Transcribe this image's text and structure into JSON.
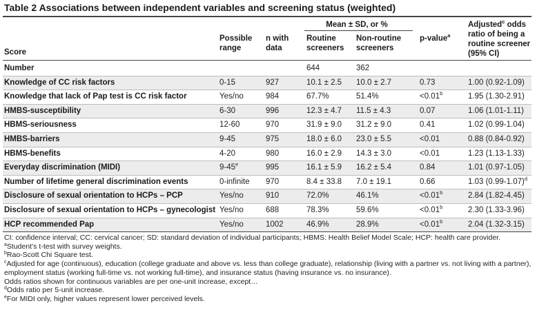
{
  "title": "Table 2 Associations between independent variables and screening status (weighted)",
  "header": {
    "score": "Score",
    "range_l1": "Possible",
    "range_l2": "range",
    "n_l1": "n with",
    "n_l2": "data",
    "mean_group": "Mean ± SD, or %",
    "routine_l1": "Routine",
    "routine_l2": "screeners",
    "nonroutine_l1": "Non-routine",
    "nonroutine_l2": "screeners",
    "pvalue": "p-value",
    "pvalue_sup": "a",
    "odds_l1a": "Adjusted",
    "odds_l1_sup": "c",
    "odds_l1b": " odds",
    "odds_l2": "ratio of being a",
    "odds_l3": "routine screener",
    "odds_l4": "(95% CI)"
  },
  "rows": [
    {
      "label": "Number",
      "range": "",
      "n": "",
      "routine": "644",
      "nonroutine": "362",
      "p": "",
      "p_sup": "",
      "odds": "",
      "odds_sup": "",
      "range_sup": ""
    },
    {
      "label": "Knowledge of CC risk factors",
      "range": "0-15",
      "range_sup": "",
      "n": "927",
      "routine": "10.1 ± 2.5",
      "nonroutine": "10.0 ± 2.7",
      "p": "0.73",
      "p_sup": "",
      "odds": "1.00 (0.92-1.09)",
      "odds_sup": ""
    },
    {
      "label": "Knowledge that lack of Pap test is CC risk factor",
      "range": "Yes/no",
      "range_sup": "",
      "n": "984",
      "routine": "67.7%",
      "nonroutine": "51.4%",
      "p": "<0.01",
      "p_sup": "b",
      "odds": "1.95 (1.30-2.91)",
      "odds_sup": ""
    },
    {
      "label": "HMBS-susceptibility",
      "range": "6-30",
      "range_sup": "",
      "n": "996",
      "routine": "12.3 ± 4.7",
      "nonroutine": "11.5 ± 4.3",
      "p": "0.07",
      "p_sup": "",
      "odds": "1.06 (1.01-1.11)",
      "odds_sup": ""
    },
    {
      "label": "HBMS-seriousness",
      "range": "12-60",
      "range_sup": "",
      "n": "970",
      "routine": "31.9 ± 9.0",
      "nonroutine": "31.2 ± 9.0",
      "p": "0.41",
      "p_sup": "",
      "odds": "1.02 (0.99-1.04)",
      "odds_sup": ""
    },
    {
      "label": "HMBS-barriers",
      "range": "9-45",
      "range_sup": "",
      "n": "975",
      "routine": "18.0 ± 6.0",
      "nonroutine": "23.0 ± 5.5",
      "p": "<0.01",
      "p_sup": "",
      "odds": "0.88 (0.84-0.92)",
      "odds_sup": ""
    },
    {
      "label": "HBMS-benefits",
      "range": "4-20",
      "range_sup": "",
      "n": "980",
      "routine": "16.0 ± 2.9",
      "nonroutine": "14.3 ± 3.0",
      "p": "<0.01",
      "p_sup": "",
      "odds": "1.23 (1.13-1.33)",
      "odds_sup": ""
    },
    {
      "label": "Everyday discrimination (MIDI)",
      "range": "9-45",
      "range_sup": "e",
      "n": "995",
      "routine": "16.1 ± 5.9",
      "nonroutine": "16.2 ± 5.4",
      "p": "0.84",
      "p_sup": "",
      "odds": "1.01 (0.97-1.05)",
      "odds_sup": ""
    },
    {
      "label": "Number of lifetime general discrimination events",
      "range": "0-infinite",
      "range_sup": "",
      "n": "970",
      "routine": "8.4 ± 33.8",
      "nonroutine": "7.0 ± 19.1",
      "p": "0.66",
      "p_sup": "",
      "odds": "1.03 (0.99-1.07)",
      "odds_sup": "d"
    },
    {
      "label": "Disclosure of sexual orientation to HCPs – PCP",
      "range": "Yes/no",
      "range_sup": "",
      "n": "910",
      "routine": "72.0%",
      "nonroutine": "46.1%",
      "p": "<0.01",
      "p_sup": "b",
      "odds": "2.84 (1.82-4.45)",
      "odds_sup": ""
    },
    {
      "label": "Disclosure of sexual orientation to HCPs – gynecologist",
      "range": "Yes/no",
      "range_sup": "",
      "n": "688",
      "routine": "78.3%",
      "nonroutine": "59.6%",
      "p": "<0.01",
      "p_sup": "b",
      "odds": "2.30 (1.33-3.96)",
      "odds_sup": ""
    },
    {
      "label": "HCP recommended Pap",
      "range": "Yes/no",
      "range_sup": "",
      "n": "1002",
      "routine": "46.9%",
      "nonroutine": "28.9%",
      "p": "<0.01",
      "p_sup": "b",
      "odds": "2.04 (1.32-3.15)",
      "odds_sup": ""
    }
  ],
  "footnotes": [
    {
      "sup": "",
      "text": "CI: confidence interval; CC: cervical cancer; SD: standard deviation of individual participants; HBMS: Health Belief Model Scale; HCP: health care provider."
    },
    {
      "sup": "a",
      "text": "Student’s t-test with survey weights."
    },
    {
      "sup": "b",
      "text": "Rao-Scott Chi Square test."
    },
    {
      "sup": "c",
      "text": "Adjusted for age (continuous), education (college graduate and above vs. less than college graduate), relationship (living with a partner vs. not living with a partner), employment status (working full-time vs. not working full-time), and insurance status (having insurance vs. no insurance)."
    },
    {
      "sup": "",
      "text": "Odds ratios shown for continuous variables are per one-unit increase, except…"
    },
    {
      "sup": "d",
      "text": "Odds ratio per 5-unit increase."
    },
    {
      "sup": "e",
      "text": "For MIDI only, higher values represent lower perceived levels."
    }
  ]
}
